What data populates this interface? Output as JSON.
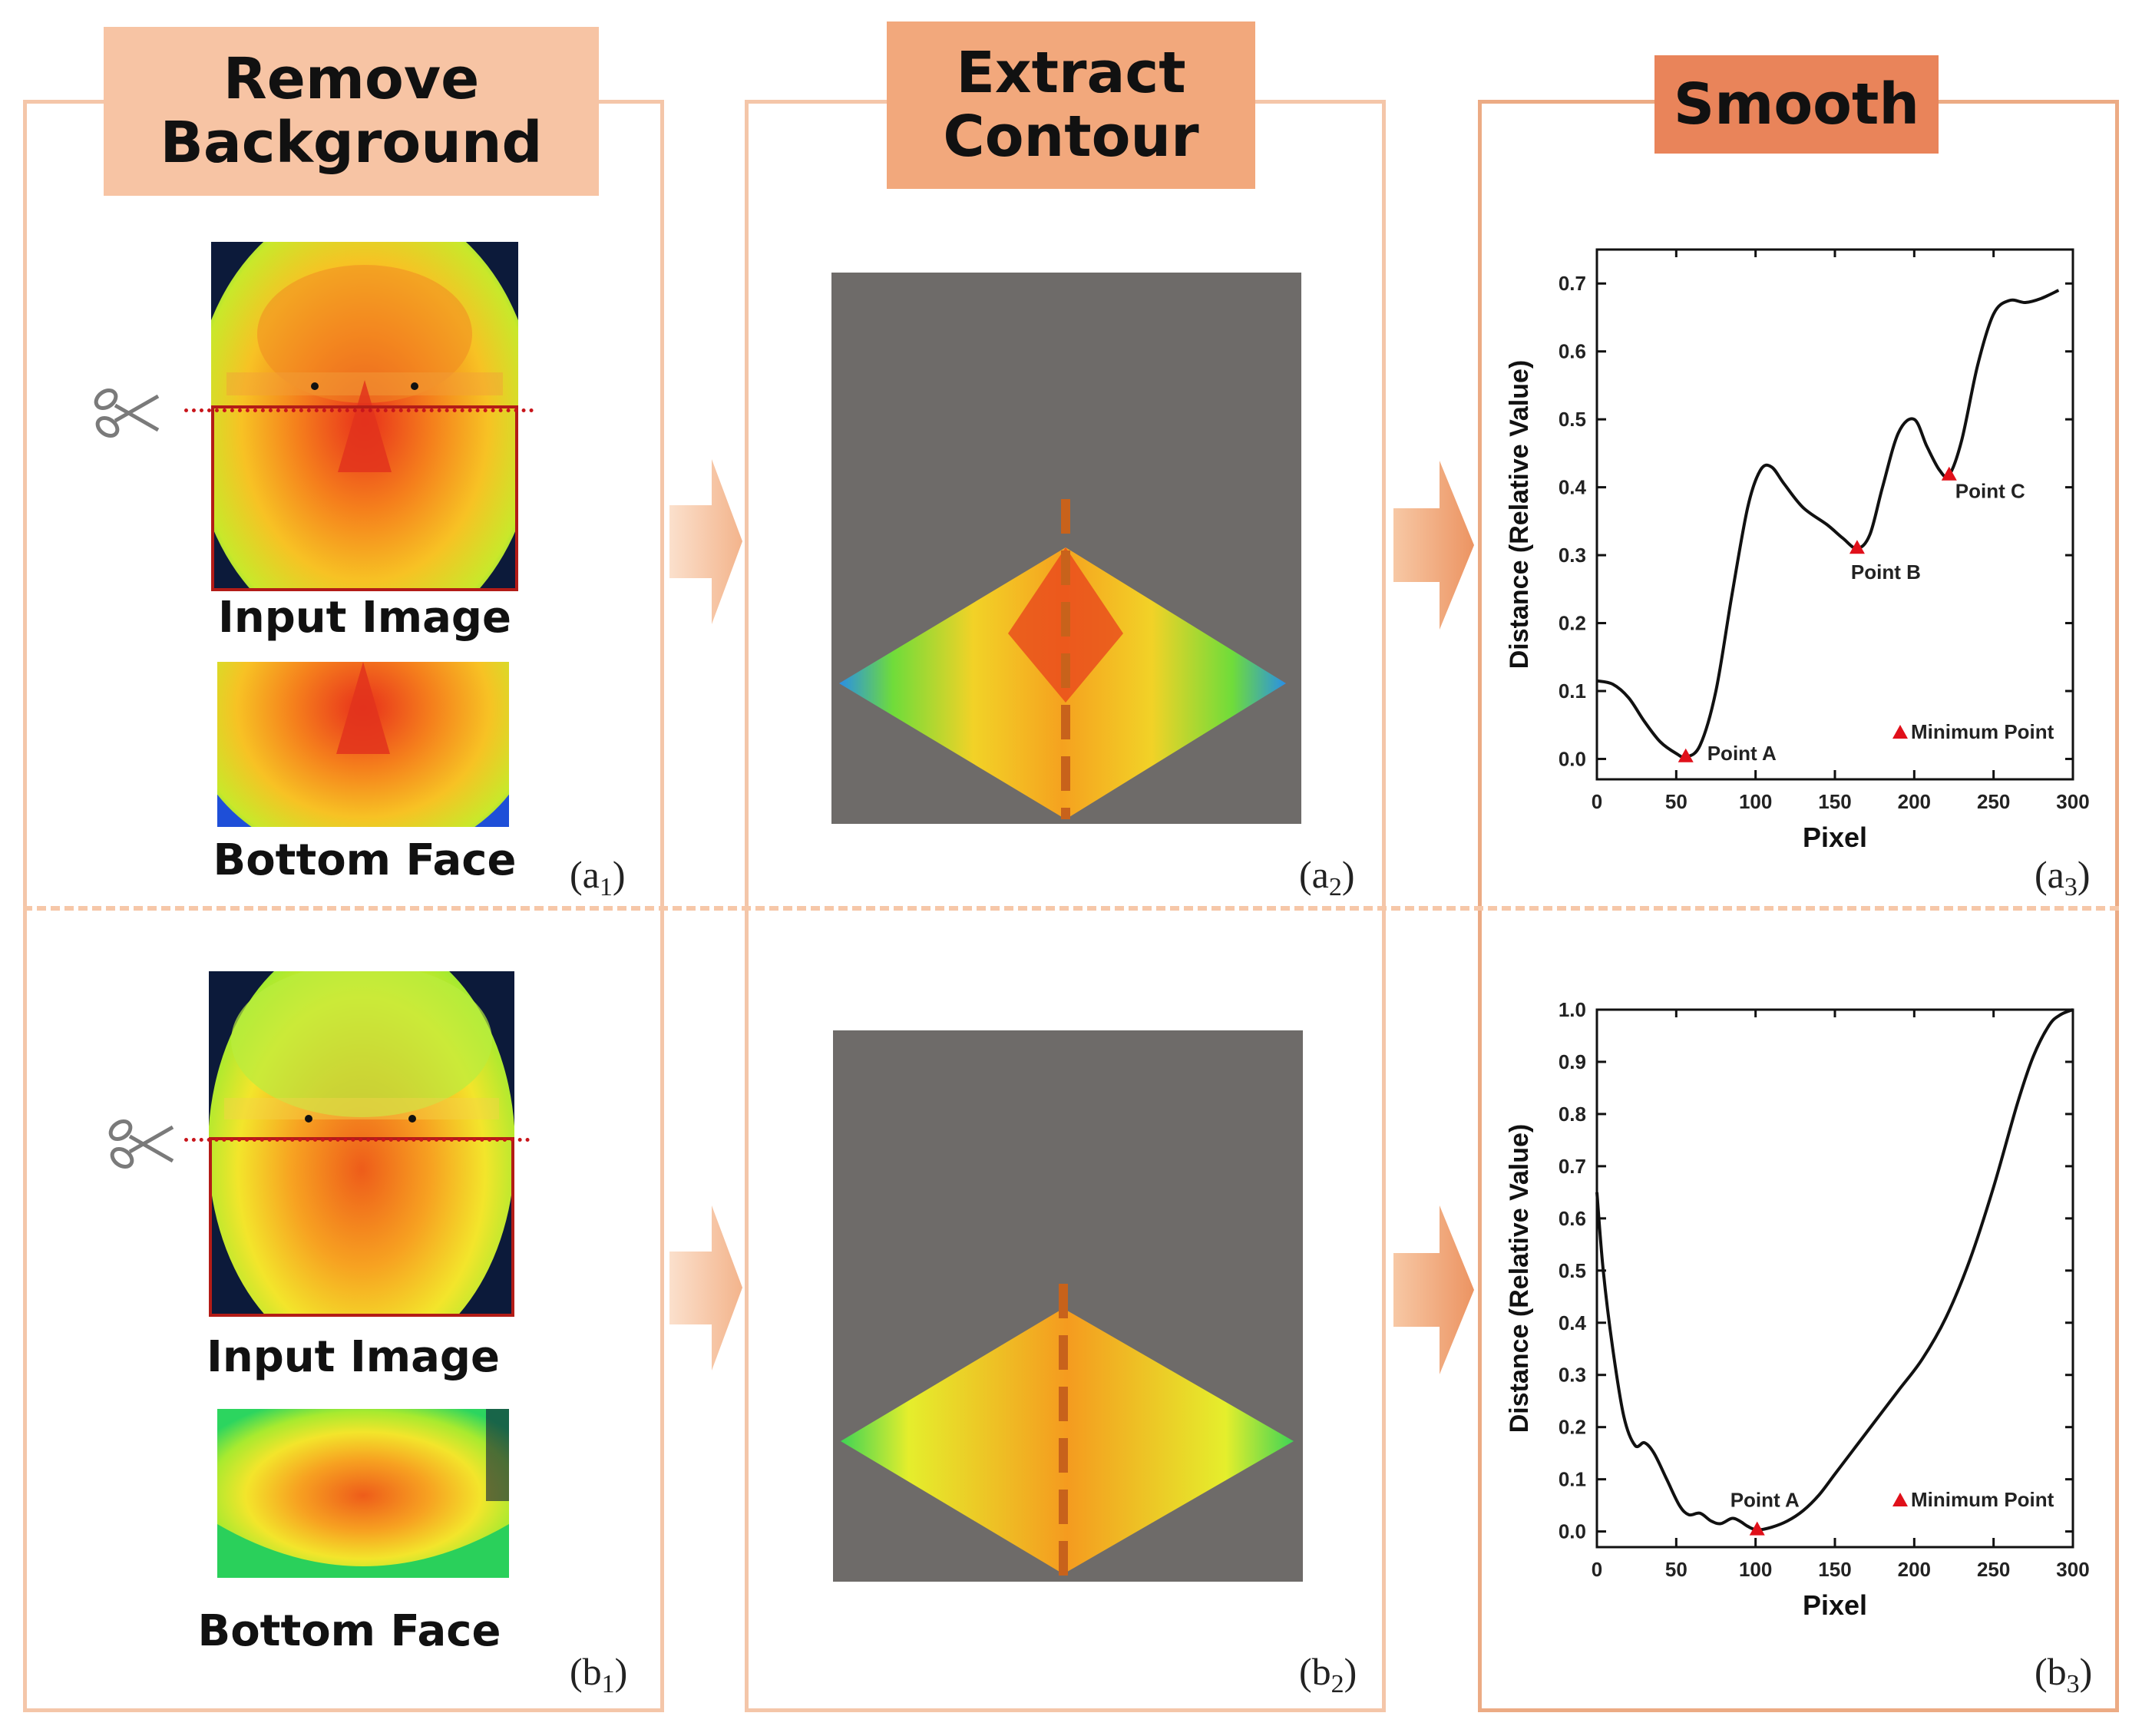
{
  "headers": {
    "remove_background": "Remove\nBackground",
    "extract_contour": "Extract\nContour",
    "smooth": "Smooth"
  },
  "captions": {
    "a_input": "Input Image",
    "a_bottom": "Bottom Face",
    "b_input": "Input Image",
    "b_bottom": "Bottom Face"
  },
  "tags": {
    "a1": {
      "base": "(a",
      "sub": "1",
      "end": ")"
    },
    "a2": {
      "base": "(a",
      "sub": "2",
      "end": ")"
    },
    "a3": {
      "base": "(a",
      "sub": "3",
      "end": ")"
    },
    "b1": {
      "base": "(b",
      "sub": "1",
      "end": ")"
    },
    "b2": {
      "base": "(b",
      "sub": "2",
      "end": ")"
    },
    "b3": {
      "base": "(b",
      "sub": "3",
      "end": ")"
    }
  },
  "colors": {
    "panel_border": "#f4c6a9",
    "header_light": "#f7c4a4",
    "header_mid": "#f2a87c",
    "header_dark": "#e9845a",
    "contour_bg": "#6e6b69",
    "dashed_axis": "#c8621b",
    "cut_line": "#c8151b",
    "marker": "#e0101a"
  },
  "icons": [
    "scissors-icon",
    "right-arrow-icon"
  ],
  "chart_data": [
    {
      "type": "line",
      "xlabel": "Pixel",
      "ylabel": "Distance (Relative Value)",
      "xlim": [
        0,
        300
      ],
      "ylim": [
        -0.03,
        0.75
      ],
      "xticks": [
        0,
        50,
        100,
        150,
        200,
        250,
        300
      ],
      "yticks": [
        0.0,
        0.1,
        0.2,
        0.3,
        0.4,
        0.5,
        0.6,
        0.7
      ],
      "series": [
        {
          "x": [
            0,
            10,
            20,
            30,
            40,
            50,
            56,
            65,
            75,
            85,
            95,
            103,
            110,
            118,
            130,
            145,
            155,
            164,
            172,
            180,
            190,
            200,
            208,
            216,
            222,
            230,
            240,
            250,
            260,
            270,
            280,
            291
          ],
          "y": [
            0.115,
            0.11,
            0.09,
            0.055,
            0.025,
            0.008,
            0.003,
            0.02,
            0.1,
            0.24,
            0.37,
            0.425,
            0.43,
            0.405,
            0.37,
            0.345,
            0.325,
            0.31,
            0.33,
            0.4,
            0.48,
            0.5,
            0.46,
            0.425,
            0.418,
            0.47,
            0.58,
            0.655,
            0.675,
            0.672,
            0.678,
            0.69
          ]
        }
      ],
      "minimum_points": [
        {
          "label": "Point A",
          "x": 56,
          "y": 0.003
        },
        {
          "label": "Point B",
          "x": 164,
          "y": 0.31
        },
        {
          "label": "Point C",
          "x": 222,
          "y": 0.418
        }
      ],
      "legend": "Minimum Point",
      "legend_position": "bottom-right"
    },
    {
      "type": "line",
      "xlabel": "Pixel",
      "ylabel": "Distance (Relative Value)",
      "xlim": [
        0,
        300
      ],
      "ylim": [
        -0.03,
        1.0
      ],
      "xticks": [
        0,
        50,
        100,
        150,
        200,
        250,
        300
      ],
      "yticks": [
        0.0,
        0.1,
        0.2,
        0.3,
        0.4,
        0.5,
        0.6,
        0.7,
        0.8,
        0.9,
        1.0
      ],
      "series": [
        {
          "x": [
            0,
            4,
            10,
            17,
            24,
            30,
            36,
            44,
            52,
            58,
            65,
            72,
            78,
            85,
            90,
            95,
            101,
            110,
            120,
            130,
            140,
            150,
            160,
            175,
            190,
            205,
            220,
            235,
            250,
            265,
            275,
            285,
            292,
            300
          ],
          "y": [
            0.65,
            0.5,
            0.35,
            0.22,
            0.165,
            0.17,
            0.15,
            0.1,
            0.05,
            0.032,
            0.035,
            0.02,
            0.015,
            0.025,
            0.02,
            0.01,
            0.003,
            0.008,
            0.02,
            0.04,
            0.07,
            0.11,
            0.15,
            0.21,
            0.27,
            0.33,
            0.41,
            0.52,
            0.66,
            0.82,
            0.91,
            0.97,
            0.99,
            1.0
          ]
        }
      ],
      "minimum_points": [
        {
          "label": "Point A",
          "x": 101,
          "y": 0.003
        }
      ],
      "legend": "Minimum Point",
      "legend_position": "bottom-right"
    }
  ]
}
